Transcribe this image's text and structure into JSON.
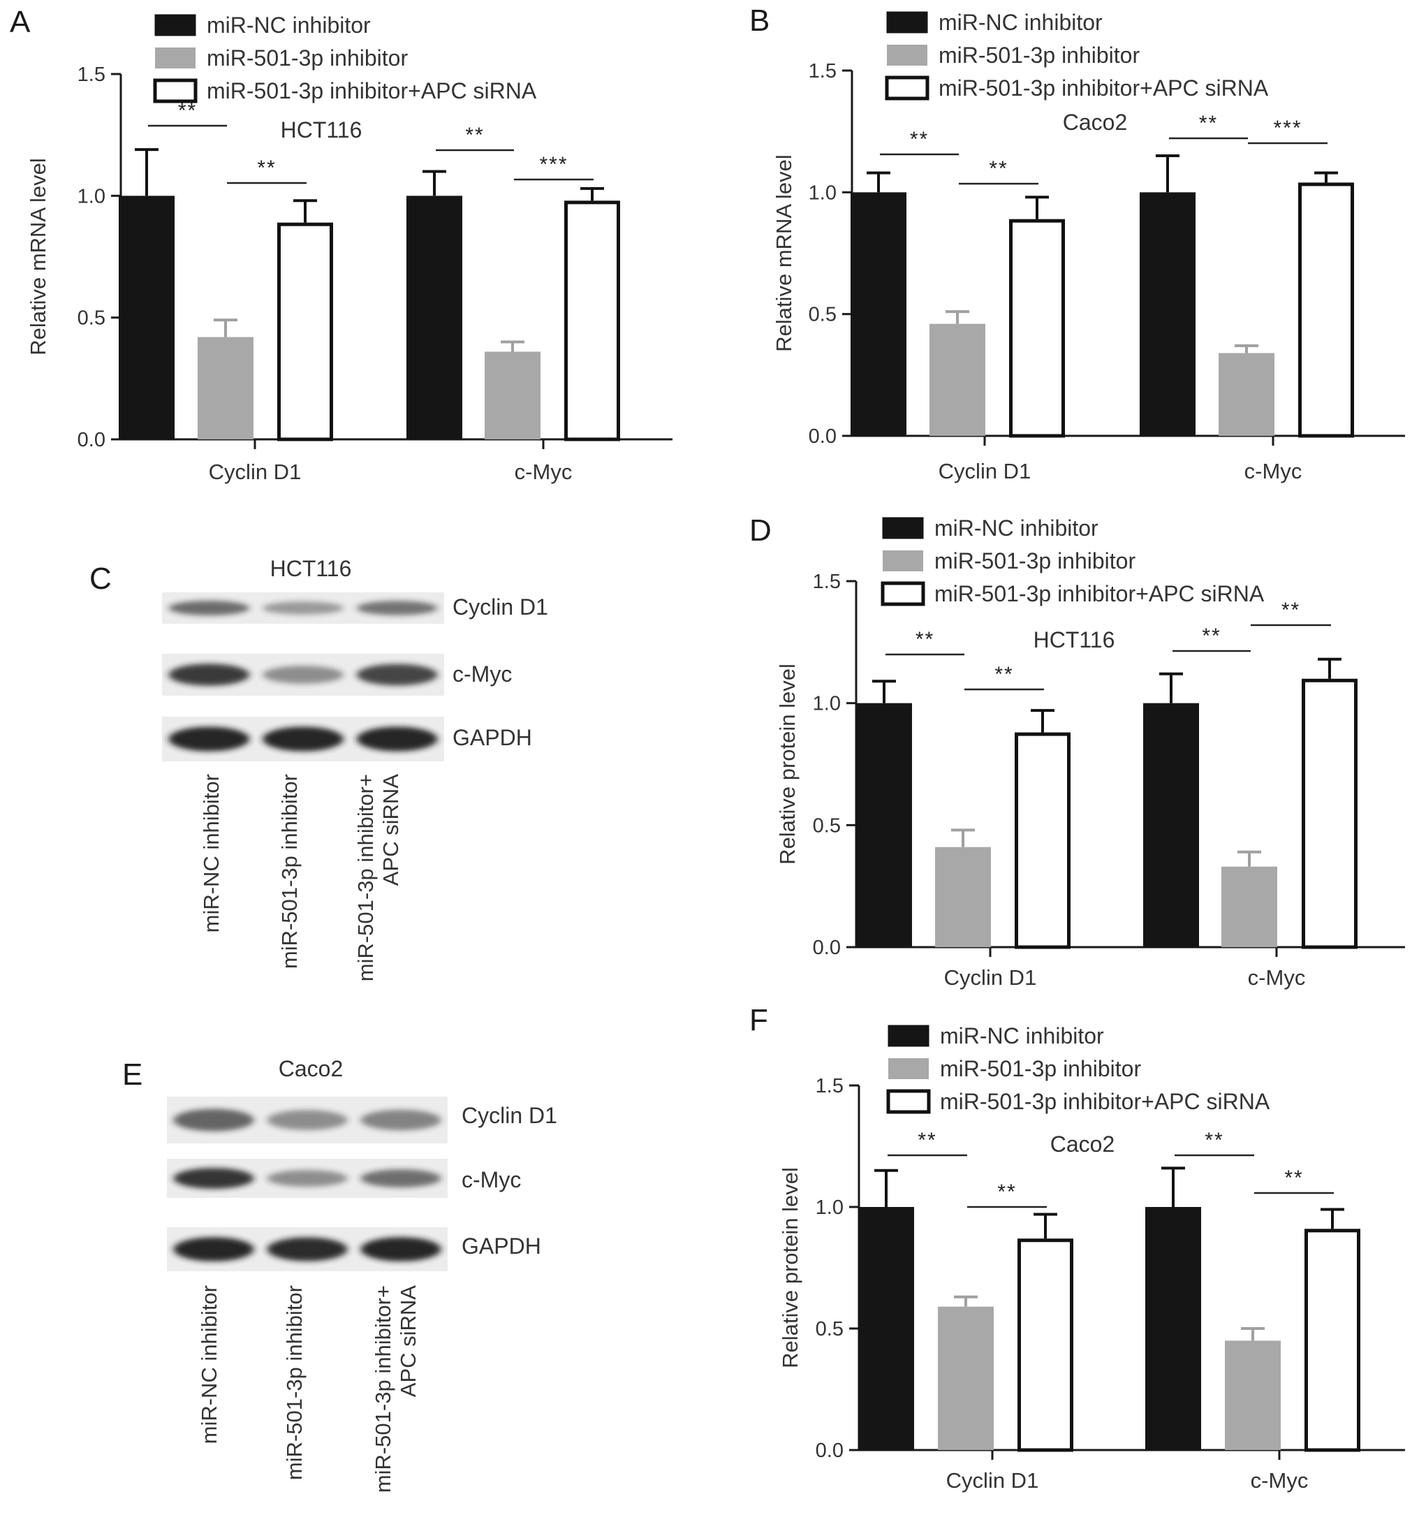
{
  "colors": {
    "nc": "#151515",
    "inh": "#a8a8a8",
    "apc": "#ffffff",
    "axis": "#1a1a1a",
    "blot_bg": "#ececec",
    "band": "#1e1e1e"
  },
  "legend_labels": [
    "miR-NC inhibitor",
    "miR-501-3p inhibitor",
    "miR-501-3p inhibitor+APC siRNA"
  ],
  "chart_data": [
    {
      "panel": "A",
      "type": "bar",
      "cell_line": "HCT116",
      "ylabel": "Relative mRNA level",
      "ylim": [
        0,
        1.5
      ],
      "yticks": [
        "0.0",
        "0.5",
        "1.0",
        "1.5"
      ],
      "categories": [
        "Cyclin D1",
        "c-Myc"
      ],
      "series": [
        {
          "name": "miR-NC inhibitor",
          "values": [
            1.0,
            1.0
          ],
          "errors": [
            0.19,
            0.1
          ]
        },
        {
          "name": "miR-501-3p inhibitor",
          "values": [
            0.42,
            0.36
          ],
          "errors": [
            0.07,
            0.04
          ]
        },
        {
          "name": "miR-501-3p inhibitor+APC siRNA",
          "values": [
            0.89,
            0.98
          ],
          "errors": [
            0.09,
            0.05
          ]
        }
      ],
      "significance": [
        {
          "category": 0,
          "from": 0,
          "to": 1,
          "label": "**"
        },
        {
          "category": 0,
          "from": 1,
          "to": 2,
          "label": "**"
        },
        {
          "category": 1,
          "from": 0,
          "to": 1,
          "label": "**"
        },
        {
          "category": 1,
          "from": 1,
          "to": 2,
          "label": "***"
        }
      ]
    },
    {
      "panel": "B",
      "type": "bar",
      "cell_line": "Caco2",
      "ylabel": "Relative mRNA level",
      "ylim": [
        0,
        1.5
      ],
      "yticks": [
        "0.0",
        "0.5",
        "1.0",
        "1.5"
      ],
      "categories": [
        "Cyclin D1",
        "c-Myc"
      ],
      "series": [
        {
          "name": "miR-NC inhibitor",
          "values": [
            1.0,
            1.0
          ],
          "errors": [
            0.08,
            0.15
          ]
        },
        {
          "name": "miR-501-3p inhibitor",
          "values": [
            0.46,
            0.34
          ],
          "errors": [
            0.05,
            0.03
          ]
        },
        {
          "name": "miR-501-3p inhibitor+APC siRNA",
          "values": [
            0.89,
            1.04
          ],
          "errors": [
            0.09,
            0.04
          ]
        }
      ],
      "significance": [
        {
          "category": 0,
          "from": 0,
          "to": 1,
          "label": "**"
        },
        {
          "category": 0,
          "from": 1,
          "to": 2,
          "label": "**"
        },
        {
          "category": 1,
          "from": 0,
          "to": 1,
          "label": "**"
        },
        {
          "category": 1,
          "from": 1,
          "to": 2,
          "label": "***"
        }
      ]
    },
    {
      "panel": "D",
      "type": "bar",
      "cell_line": "HCT116",
      "ylabel": "Relative protein level",
      "ylim": [
        0,
        1.5
      ],
      "yticks": [
        "0.0",
        "0.5",
        "1.0",
        "1.5"
      ],
      "categories": [
        "Cyclin D1",
        "c-Myc"
      ],
      "series": [
        {
          "name": "miR-NC inhibitor",
          "values": [
            1.0,
            1.0
          ],
          "errors": [
            0.09,
            0.12
          ]
        },
        {
          "name": "miR-501-3p inhibitor",
          "values": [
            0.41,
            0.33
          ],
          "errors": [
            0.07,
            0.06
          ]
        },
        {
          "name": "miR-501-3p inhibitor+APC siRNA",
          "values": [
            0.88,
            1.1
          ],
          "errors": [
            0.09,
            0.08
          ]
        }
      ],
      "significance": [
        {
          "category": 0,
          "from": 0,
          "to": 1,
          "label": "**"
        },
        {
          "category": 0,
          "from": 1,
          "to": 2,
          "label": "**"
        },
        {
          "category": 1,
          "from": 0,
          "to": 1,
          "label": "**"
        },
        {
          "category": 1,
          "from": 1,
          "to": 2,
          "label": "**"
        }
      ]
    },
    {
      "panel": "F",
      "type": "bar",
      "cell_line": "Caco2",
      "ylabel": "Relative protein level",
      "ylim": [
        0,
        1.5
      ],
      "yticks": [
        "0.0",
        "0.5",
        "1.0",
        "1.5"
      ],
      "categories": [
        "Cyclin D1",
        "c-Myc"
      ],
      "series": [
        {
          "name": "miR-NC inhibitor",
          "values": [
            1.0,
            1.0
          ],
          "errors": [
            0.15,
            0.16
          ]
        },
        {
          "name": "miR-501-3p inhibitor",
          "values": [
            0.59,
            0.45
          ],
          "errors": [
            0.04,
            0.05
          ]
        },
        {
          "name": "miR-501-3p inhibitor+APC siRNA",
          "values": [
            0.87,
            0.91
          ],
          "errors": [
            0.1,
            0.08
          ]
        }
      ],
      "significance": [
        {
          "category": 0,
          "from": 0,
          "to": 1,
          "label": "**"
        },
        {
          "category": 0,
          "from": 1,
          "to": 2,
          "label": "**"
        },
        {
          "category": 1,
          "from": 0,
          "to": 1,
          "label": "**"
        },
        {
          "category": 1,
          "from": 1,
          "to": 2,
          "label": "**"
        }
      ]
    }
  ],
  "blots": [
    {
      "panel": "C",
      "cell_line": "HCT116",
      "rows": [
        {
          "label": "Cyclin D1",
          "intensities": [
            0.62,
            0.4,
            0.58
          ]
        },
        {
          "label": "c-Myc",
          "intensities": [
            0.85,
            0.45,
            0.8
          ]
        },
        {
          "label": "GAPDH",
          "intensities": [
            0.95,
            0.95,
            0.95
          ]
        }
      ],
      "lanes": [
        "miR-NC inhibitor",
        "miR-501-3p inhibitor",
        "miR-501-3p inhibitor+ APC siRNA"
      ]
    },
    {
      "panel": "E",
      "cell_line": "Caco2",
      "rows": [
        {
          "label": "Cyclin D1",
          "intensities": [
            0.65,
            0.45,
            0.5
          ]
        },
        {
          "label": "c-Myc",
          "intensities": [
            0.88,
            0.45,
            0.6
          ]
        },
        {
          "label": "GAPDH",
          "intensities": [
            0.95,
            0.92,
            0.95
          ]
        }
      ],
      "lanes": [
        "miR-NC inhibitor",
        "miR-501-3p inhibitor",
        "miR-501-3p inhibitor+ APC siRNA"
      ]
    }
  ]
}
